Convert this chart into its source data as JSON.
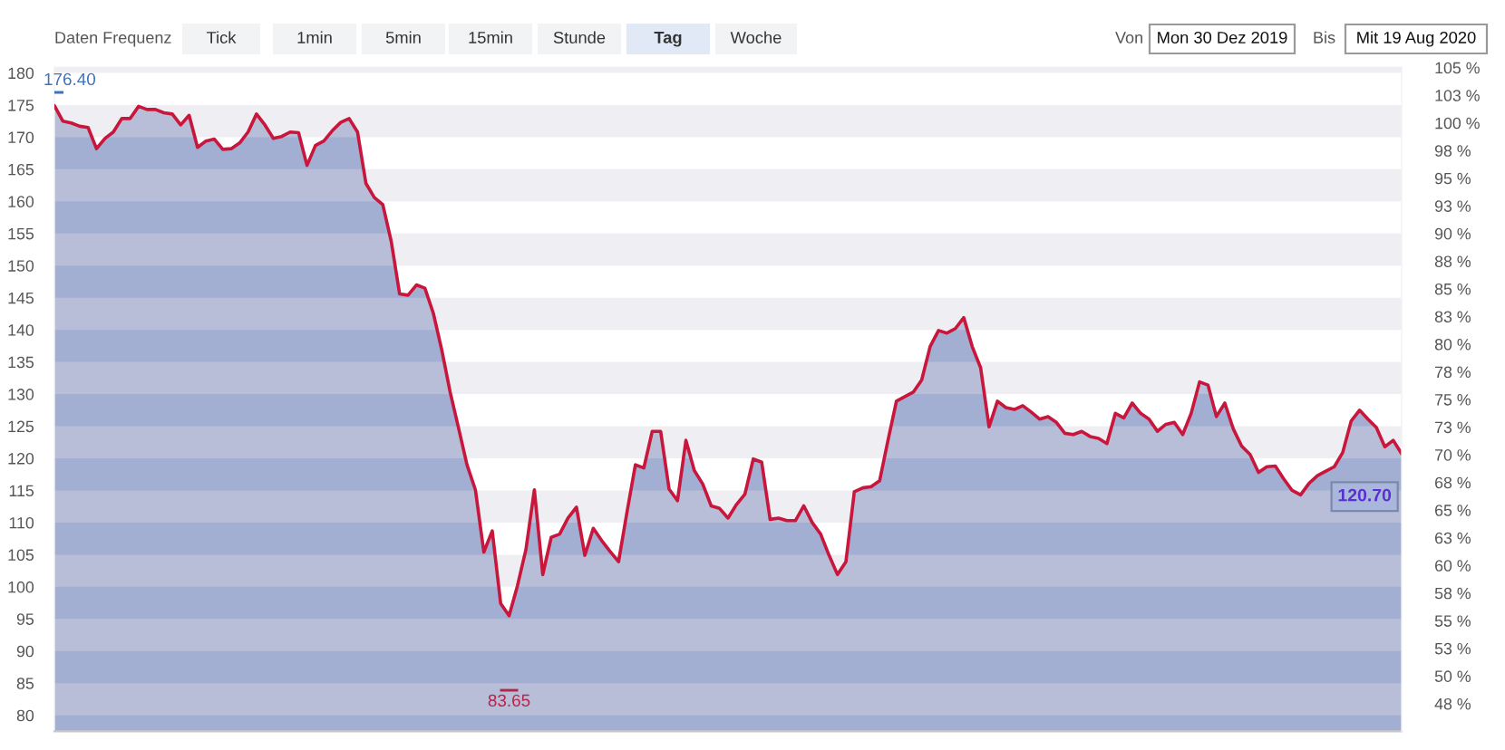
{
  "chart_data": {
    "type": "area",
    "annotations": [
      "Daten Frequenz",
      "Tick",
      "1min",
      "5min",
      "15min",
      "Stunde",
      "Tag",
      "Woche",
      "Von",
      "Mon 30 Dez 2019",
      "Bis",
      "Mit 19 Aug 2020",
      "176.40",
      "83.65"
    ],
    "categories": [
      null,
      null,
      null,
      null,
      null,
      null,
      null,
      null,
      null,
      null,
      null,
      null,
      null,
      null,
      null,
      null,
      null,
      null,
      null,
      null,
      null,
      null,
      null,
      null,
      null,
      null,
      null,
      null,
      null,
      null,
      null,
      null,
      null,
      null,
      null,
      null,
      null,
      null,
      null,
      null,
      null,
      null,
      null,
      null,
      null,
      null,
      null,
      null,
      null,
      null,
      null,
      null,
      null,
      null,
      null,
      null,
      null,
      null,
      null,
      null,
      null,
      null,
      null,
      null,
      null,
      null,
      null,
      null,
      null,
      null,
      null,
      null,
      null,
      null,
      null,
      null,
      null,
      null,
      null,
      null,
      null,
      null,
      null,
      null,
      null,
      null,
      null,
      null,
      null,
      null,
      null,
      null,
      null,
      null,
      null,
      null,
      null,
      null,
      null,
      null,
      null,
      null,
      null,
      null,
      null,
      null,
      null,
      null,
      null,
      null,
      null,
      null,
      null,
      null,
      null,
      null,
      null,
      null,
      null,
      null,
      null,
      null,
      null,
      null,
      null,
      null,
      null,
      null,
      null,
      null,
      null,
      null,
      null,
      null,
      null,
      null,
      null,
      null,
      null,
      null,
      null,
      null,
      null,
      null,
      null,
      null,
      null,
      null,
      null,
      null,
      null,
      null,
      null,
      null,
      null,
      null,
      null,
      null,
      null,
      null,
      null
    ],
    "series": [
      {
        "color": "#8f9cc9",
        "values": [
          174.9,
          172.5,
          172.2,
          171.7,
          171.5,
          168.2,
          169.8,
          170.8,
          172.9,
          172.9,
          174.8,
          174.3,
          174.3,
          173.8,
          173.6,
          171.9,
          173.4,
          168.4,
          169.4,
          169.7,
          168.1,
          168.2,
          169.1,
          170.8,
          173.6,
          171.9,
          169.8,
          170.1,
          170.8,
          170.7,
          165.6,
          168.7,
          169.4,
          171.0,
          172.3,
          172.9,
          170.8,
          162.8,
          160.6,
          159.5,
          153.8,
          145.6,
          145.4,
          147.0,
          146.5,
          142.6,
          136.9,
          130.3,
          124.7,
          119.0,
          115.1,
          105.4,
          108.7,
          97.4,
          95.5,
          100.2,
          105.8,
          115.1,
          101.9,
          107.7,
          108.2,
          110.7,
          112.4,
          104.9,
          109.1,
          107.2,
          105.5,
          103.9,
          111.6,
          119.0,
          118.5,
          124.2,
          124.2,
          115.2,
          113.4,
          122.8,
          118.1,
          116.0,
          112.6,
          112.2,
          110.7,
          112.8,
          114.4,
          119.9,
          119.4,
          110.5,
          110.7,
          110.3,
          110.3,
          112.6,
          110.0,
          108.2,
          104.9,
          101.9,
          103.9,
          114.8,
          115.4,
          115.6,
          116.5,
          122.8,
          128.9,
          129.6,
          130.3,
          132.2,
          137.4,
          139.9,
          139.5,
          140.2,
          141.9,
          137.4,
          134.1,
          124.9,
          128.9,
          127.9,
          127.6,
          128.2,
          127.2,
          126.1,
          126.5,
          125.6,
          123.9,
          123.7,
          124.2,
          123.4,
          123.1,
          122.3,
          127.0,
          126.3,
          128.6,
          127.0,
          126.1,
          124.2,
          125.3,
          125.6,
          123.7,
          127.0,
          131.9,
          131.4,
          126.5,
          128.6,
          124.6,
          121.9,
          120.6,
          117.8,
          118.7,
          118.8,
          116.8,
          115.0,
          114.3,
          116.1,
          117.3,
          118.0,
          118.7,
          120.9,
          125.8,
          127.5,
          126.1,
          124.8,
          121.8,
          122.8,
          120.7
        ]
      },
      {
        "type": "line",
        "color": "#c8163c",
        "values": [
          174.9,
          172.5,
          172.2,
          171.7,
          171.5,
          168.2,
          169.8,
          170.8,
          172.9,
          172.9,
          174.8,
          174.3,
          174.3,
          173.8,
          173.6,
          171.9,
          173.4,
          168.4,
          169.4,
          169.7,
          168.1,
          168.2,
          169.1,
          170.8,
          173.6,
          171.9,
          169.8,
          170.1,
          170.8,
          170.7,
          165.6,
          168.7,
          169.4,
          171.0,
          172.3,
          172.9,
          170.8,
          162.8,
          160.6,
          159.5,
          153.8,
          145.6,
          145.4,
          147.0,
          146.5,
          142.6,
          136.9,
          130.3,
          124.7,
          119.0,
          115.1,
          105.4,
          108.7,
          97.4,
          95.5,
          100.2,
          105.8,
          115.1,
          101.9,
          107.7,
          108.2,
          110.7,
          112.4,
          104.9,
          109.1,
          107.2,
          105.5,
          103.9,
          111.6,
          119.0,
          118.5,
          124.2,
          124.2,
          115.2,
          113.4,
          122.8,
          118.1,
          116.0,
          112.6,
          112.2,
          110.7,
          112.8,
          114.4,
          119.9,
          119.4,
          110.5,
          110.7,
          110.3,
          110.3,
          112.6,
          110.0,
          108.2,
          104.9,
          101.9,
          103.9,
          114.8,
          115.4,
          115.6,
          116.5,
          122.8,
          128.9,
          129.6,
          130.3,
          132.2,
          137.4,
          139.9,
          139.5,
          140.2,
          141.9,
          137.4,
          134.1,
          124.9,
          128.9,
          127.9,
          127.6,
          128.2,
          127.2,
          126.1,
          126.5,
          125.6,
          123.9,
          123.7,
          124.2,
          123.4,
          123.1,
          122.3,
          127.0,
          126.3,
          128.6,
          127.0,
          126.1,
          124.2,
          125.3,
          125.6,
          123.7,
          127.0,
          131.9,
          131.4,
          126.5,
          128.6,
          124.6,
          121.9,
          120.6,
          117.8,
          118.7,
          118.8,
          116.8,
          115.0,
          114.3,
          116.1,
          117.3,
          118.0,
          118.7,
          120.9,
          125.8,
          127.5,
          126.1,
          124.8,
          121.8,
          122.8,
          120.7
        ],
        "value_labels": [
          null,
          null,
          null,
          null,
          null,
          null,
          null,
          null,
          null,
          null,
          null,
          null,
          null,
          null,
          null,
          null,
          null,
          null,
          null,
          null,
          null,
          null,
          null,
          null,
          null,
          null,
          null,
          null,
          null,
          null,
          null,
          null,
          null,
          null,
          null,
          null,
          null,
          null,
          null,
          null,
          null,
          null,
          null,
          null,
          null,
          null,
          null,
          null,
          null,
          null,
          null,
          null,
          null,
          null,
          null,
          null,
          null,
          null,
          null,
          null,
          null,
          null,
          null,
          null,
          null,
          null,
          null,
          null,
          null,
          null,
          null,
          null,
          null,
          null,
          null,
          null,
          null,
          null,
          null,
          null,
          null,
          null,
          null,
          null,
          null,
          null,
          null,
          null,
          null,
          null,
          null,
          null,
          null,
          null,
          null,
          null,
          null,
          null,
          null,
          null,
          null,
          null,
          null,
          null,
          null,
          null,
          null,
          null,
          null,
          null,
          null,
          null,
          null,
          null,
          null,
          null,
          null,
          null,
          null,
          null,
          null,
          null,
          null,
          null,
          null,
          null,
          null,
          null,
          null,
          null,
          null,
          null,
          null,
          null,
          null,
          null,
          null,
          null,
          null,
          null,
          null,
          null,
          null,
          null,
          null,
          null,
          null,
          null,
          null,
          null,
          null,
          null,
          null,
          null,
          null,
          null,
          null,
          null,
          null,
          null,
          "120.70"
        ]
      }
    ],
    "ylim": [
      77.5,
      181
    ],
    "yticks": [
      80,
      85,
      90,
      95,
      100,
      105,
      110,
      115,
      120,
      125,
      130,
      135,
      140,
      145,
      150,
      155,
      160,
      165,
      170,
      175,
      180
    ],
    "y2lim": [
      45.0,
      105.1
    ],
    "y2ticks": [
      {
        "value": 47.5,
        "label": "48 %"
      },
      {
        "value": 50,
        "label": "50 %"
      },
      {
        "value": 52.5,
        "label": "53 %"
      },
      {
        "value": 55,
        "label": "55 %"
      },
      {
        "value": 57.5,
        "label": "58 %"
      },
      {
        "value": 60,
        "label": "60 %"
      },
      {
        "value": 62.5,
        "label": "63 %"
      },
      {
        "value": 65,
        "label": "65 %"
      },
      {
        "value": 67.5,
        "label": "68 %"
      },
      {
        "value": 70,
        "label": "70 %"
      },
      {
        "value": 72.5,
        "label": "73 %"
      },
      {
        "value": 75,
        "label": "75 %"
      },
      {
        "value": 77.5,
        "label": "78 %"
      },
      {
        "value": 80,
        "label": "80 %"
      },
      {
        "value": 82.5,
        "label": "83 %"
      },
      {
        "value": 85,
        "label": "85 %"
      },
      {
        "value": 87.5,
        "label": "88 %"
      },
      {
        "value": 90,
        "label": "90 %"
      },
      {
        "value": 92.5,
        "label": "93 %"
      },
      {
        "value": 95,
        "label": "95 %"
      },
      {
        "value": 97.5,
        "label": "98 %"
      },
      {
        "value": 100,
        "label": "100 %"
      },
      {
        "value": 102.5,
        "label": "103 %"
      },
      {
        "value": 105,
        "label": "105 %"
      }
    ],
    "bands": [
      {
        "axis": "y",
        "from": 80,
        "to": 85,
        "color": "#d7d7e1"
      },
      {
        "axis": "y",
        "from": 90,
        "to": 95,
        "color": "#d7d7e1"
      },
      {
        "axis": "y",
        "from": 100,
        "to": 105,
        "color": "#d7d7e1"
      },
      {
        "axis": "y",
        "from": 110,
        "to": 115,
        "color": "#d7d7e1"
      },
      {
        "axis": "y",
        "from": 120,
        "to": 125,
        "color": "#d7d7e1"
      },
      {
        "axis": "y",
        "from": 130,
        "to": 135,
        "color": "#d7d7e1"
      },
      {
        "axis": "y",
        "from": 140,
        "to": 145,
        "color": "#d7d7e1"
      },
      {
        "axis": "y",
        "from": 150,
        "to": 155,
        "color": "#d7d7e1"
      },
      {
        "axis": "y",
        "from": 160,
        "to": 165,
        "color": "#d7d7e1"
      },
      {
        "axis": "y",
        "from": 170,
        "to": 175,
        "color": "#d7d7e1"
      },
      {
        "axis": "y",
        "from": 180,
        "to": 181,
        "color": "#d7d7e1"
      }
    ],
    "tick_labels": "y"
  }
}
